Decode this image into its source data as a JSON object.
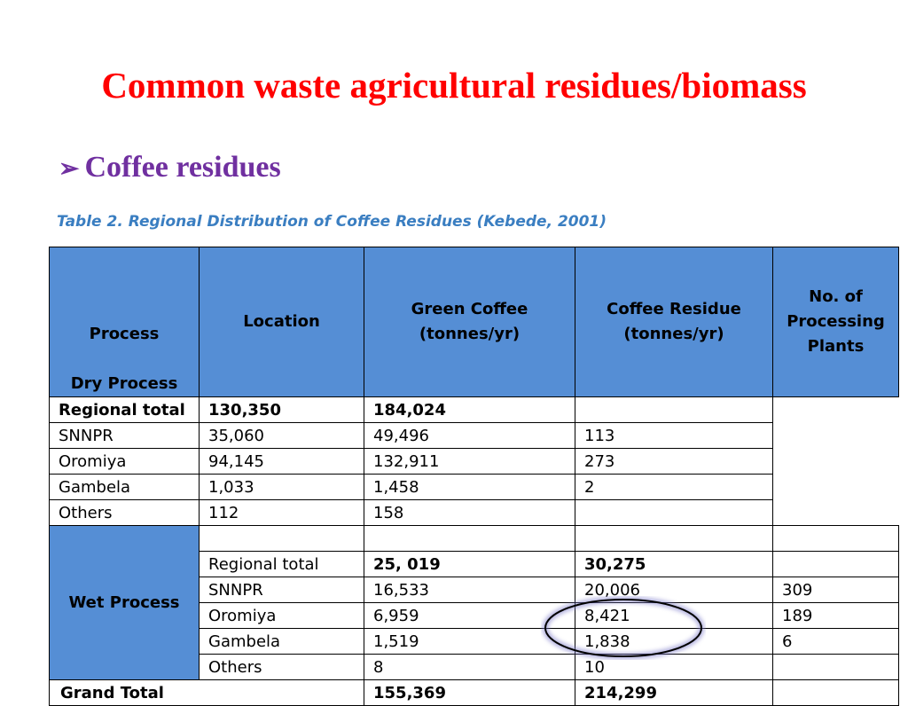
{
  "slide": {
    "title": "Common waste agricultural residues/biomass",
    "bullet_icon": "arrow-bullet-icon",
    "subheading": "Coffee residues",
    "caption": "Table 2. Regional Distribution of Coffee Residues (Kebede, 2001)"
  },
  "colors": {
    "title": "#ff0000",
    "subheading": "#7030a0",
    "caption": "#3a7ec1",
    "header_fill": "#558ed5"
  },
  "table": {
    "headers": {
      "process": "Process",
      "location": "Location",
      "green_coffee": "Green Coffee (tonnes/yr)",
      "coffee_residue": "Coffee Residue (tonnes/yr)",
      "plants": "No. of Processing Plants"
    },
    "dry_label": "Dry Process",
    "wet_label": "Wet Process",
    "dry_rows": [
      {
        "location": "Regional total",
        "green": "130,350",
        "residue": "184,024",
        "plants": ""
      },
      {
        "location": "SNNPR",
        "green": "35,060",
        "residue": "49,496",
        "plants": "113"
      },
      {
        "location": "Oromiya",
        "green": "94,145",
        "residue": "132,911",
        "plants": "273"
      },
      {
        "location": "Gambela",
        "green": "1,033",
        "residue": "1,458",
        "plants": "2"
      },
      {
        "location": "Others",
        "green": "112",
        "residue": "158",
        "plants": ""
      }
    ],
    "wet_rows": [
      {
        "location": "",
        "green": "",
        "residue": "",
        "plants": ""
      },
      {
        "location": "Regional total",
        "green": "25, 019",
        "residue": "30,275",
        "plants": ""
      },
      {
        "location": "SNNPR",
        "green": "16,533",
        "residue": "20,006",
        "plants": "309"
      },
      {
        "location": "Oromiya",
        "green": "6,959",
        "residue": "8,421",
        "plants": "189"
      },
      {
        "location": "Gambela",
        "green": "1,519",
        "residue": "1,838",
        "plants": "6"
      },
      {
        "location": "Others",
        "green": "8",
        "residue": "10",
        "plants": ""
      }
    ],
    "grand_total": {
      "label": "Grand Total",
      "green": "155,369",
      "residue": "214,299",
      "plants": ""
    }
  }
}
